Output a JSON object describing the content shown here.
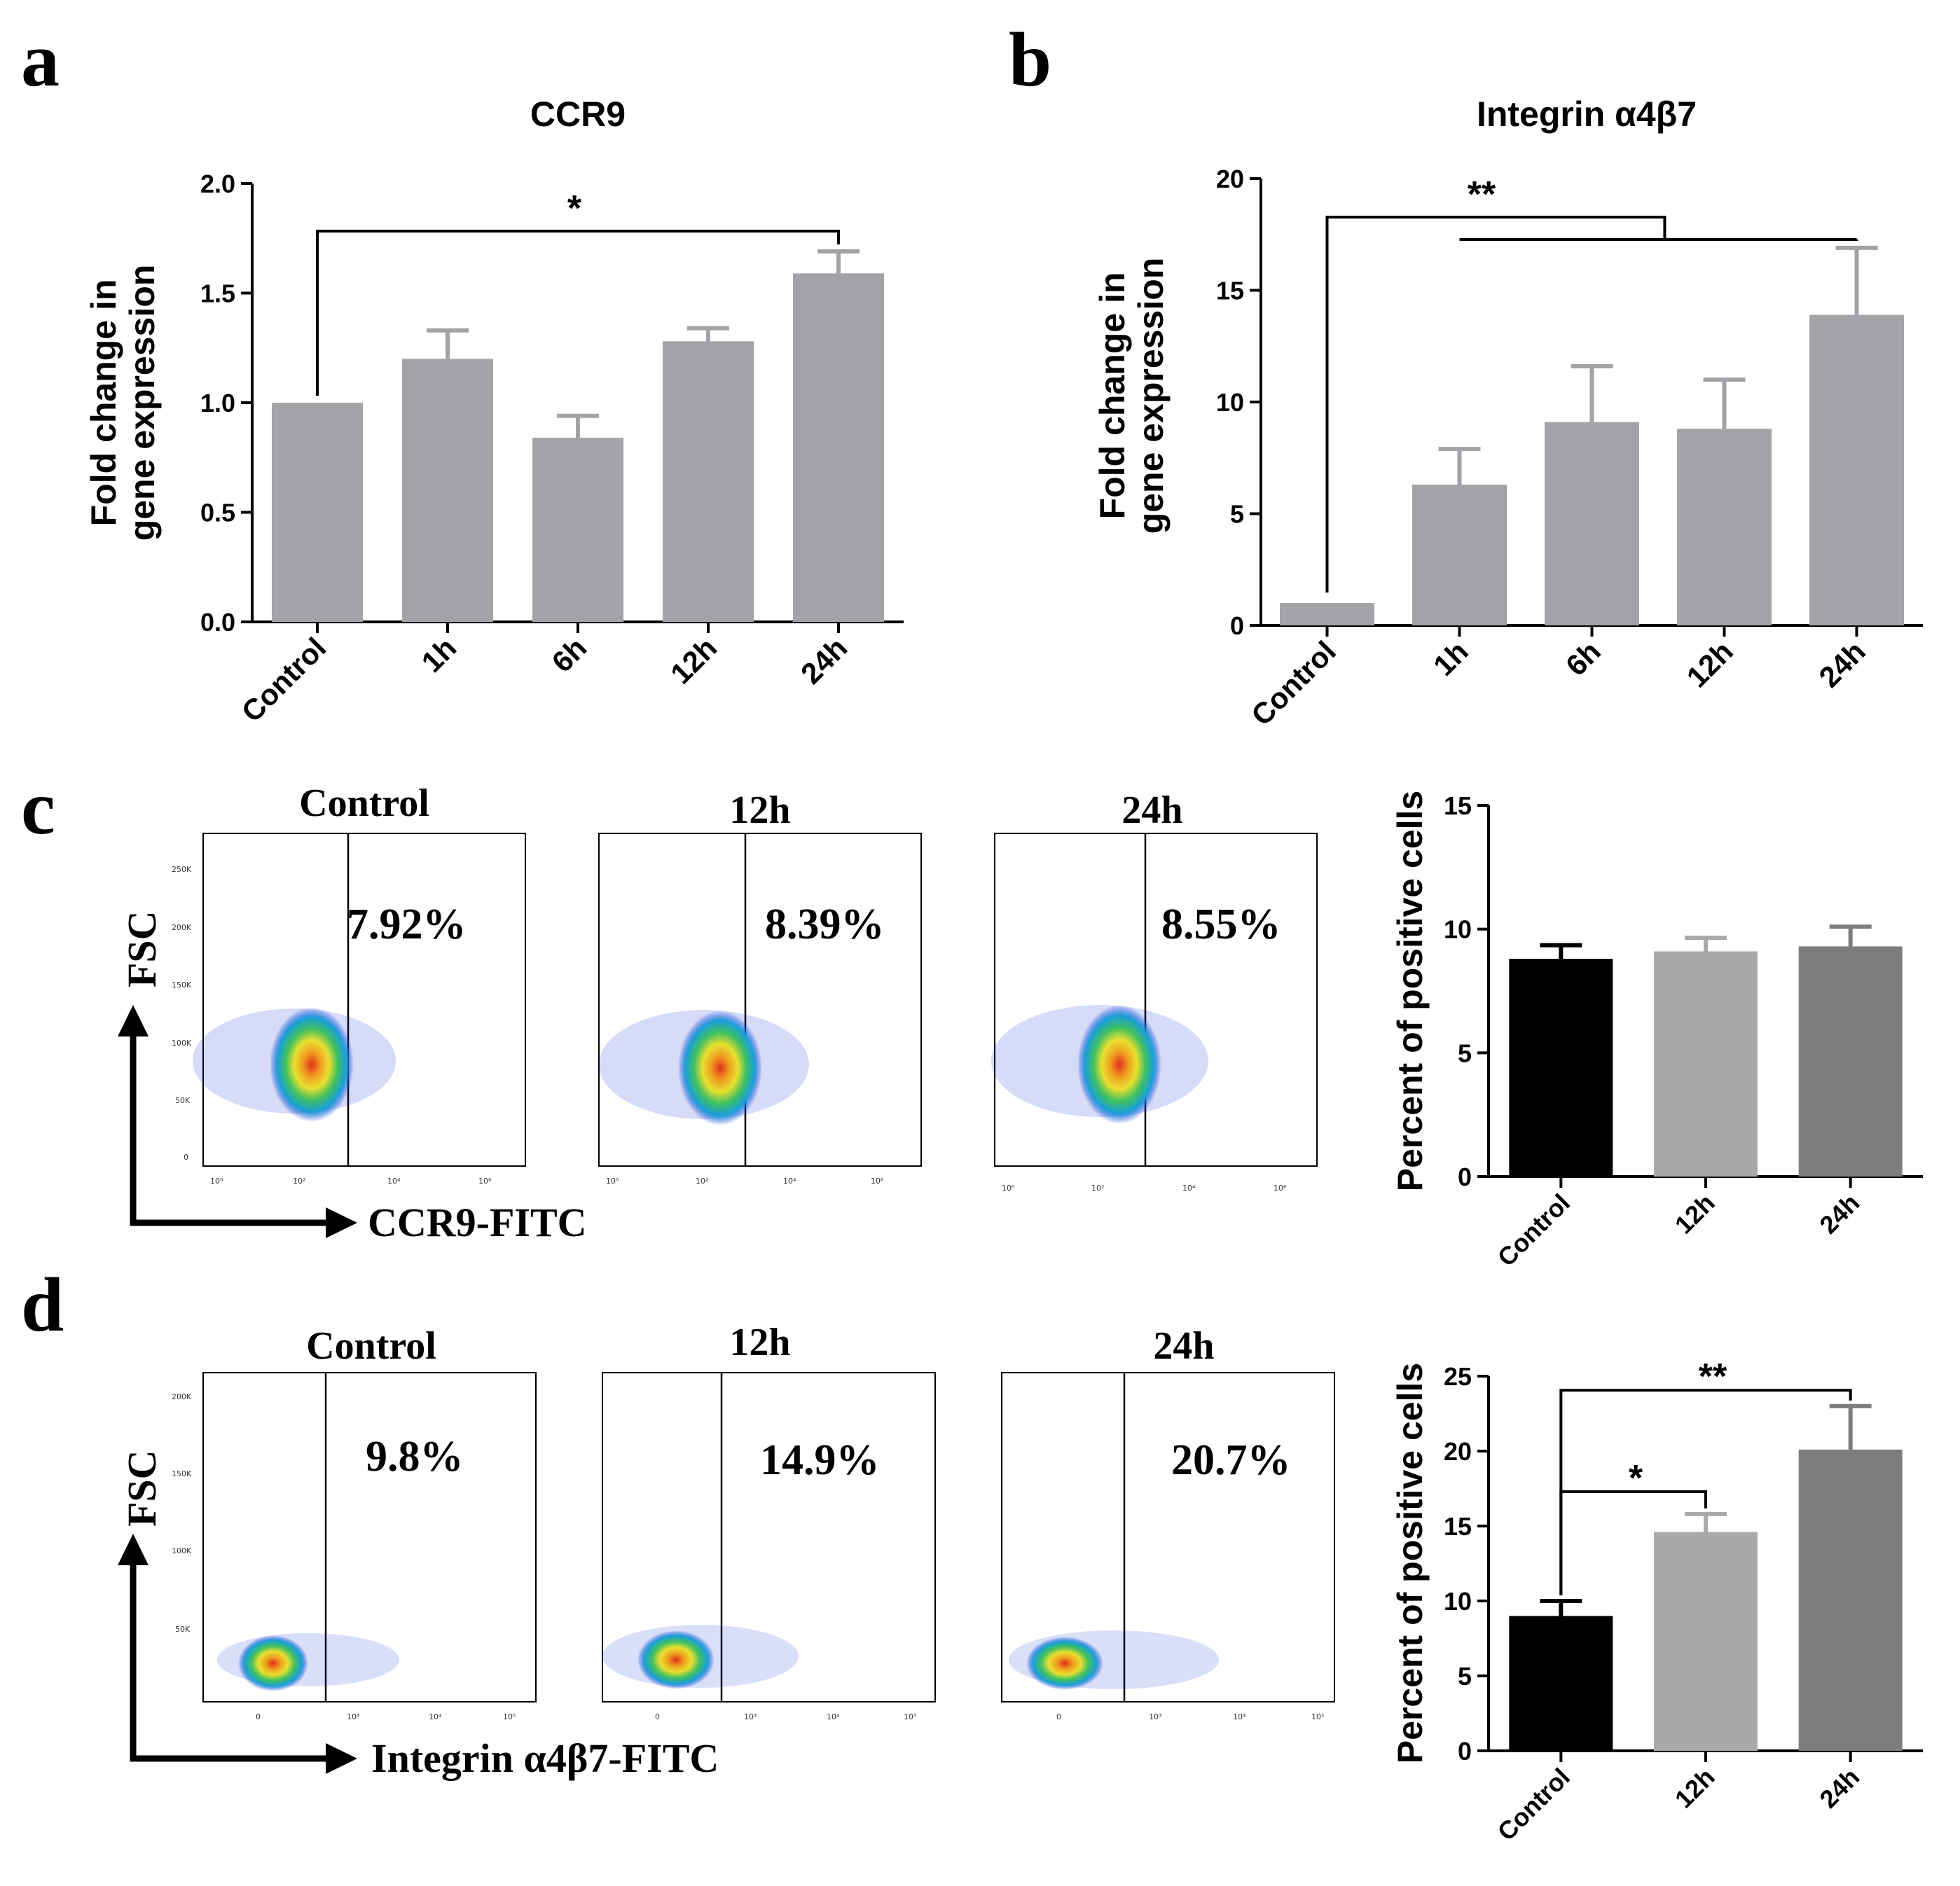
{
  "panel_labels": [
    "a",
    "b",
    "c",
    "d"
  ],
  "colors": {
    "bar_gray": "#a3a3a7",
    "bar_black": "#000000",
    "bar_light": "#a9a9ac",
    "bar_dark": "#7d7d80",
    "axis": "#000000"
  },
  "chart_data": [
    {
      "id": "a",
      "type": "bar",
      "title": "CCR9",
      "ylabel": [
        "Fold change in",
        "gene expression"
      ],
      "categories": [
        "Control",
        "1h",
        "6h",
        "12h",
        "24h"
      ],
      "values": [
        1.0,
        1.2,
        0.84,
        1.28,
        1.59
      ],
      "errors": [
        0.0,
        0.13,
        0.1,
        0.06,
        0.1
      ],
      "ylim": [
        0,
        2.0
      ],
      "yticks": [
        "0.0",
        "0.5",
        "1.0",
        "1.5",
        "2.0"
      ],
      "significance": [
        {
          "from": "Control",
          "to": "24h",
          "label": "*"
        }
      ]
    },
    {
      "id": "b",
      "type": "bar",
      "title": "Integrin α4β7",
      "ylabel": [
        "Fold change in",
        "gene expression"
      ],
      "categories": [
        "Control",
        "1h",
        "6h",
        "12h",
        "24h"
      ],
      "values": [
        1.0,
        6.3,
        9.1,
        8.8,
        13.9
      ],
      "errors": [
        0.0,
        1.6,
        2.5,
        2.2,
        3.0
      ],
      "ylim": [
        0,
        20
      ],
      "yticks": [
        "0",
        "5",
        "10",
        "15",
        "20"
      ],
      "significance": [
        {
          "from": "Control",
          "to": "1h–24h",
          "label": "**"
        }
      ]
    },
    {
      "id": "c",
      "type": "bar",
      "title": "",
      "ylabel": [
        "Percent of positive cells"
      ],
      "categories": [
        "Control",
        "12h",
        "24h"
      ],
      "values": [
        8.8,
        9.1,
        9.3
      ],
      "errors": [
        0.55,
        0.55,
        0.8
      ],
      "ylim": [
        0,
        15
      ],
      "yticks": [
        "0",
        "5",
        "10",
        "15"
      ],
      "significance": []
    },
    {
      "id": "d",
      "type": "bar",
      "title": "",
      "ylabel": [
        "Percent of positive cells"
      ],
      "categories": [
        "Control",
        "12h",
        "24h"
      ],
      "values": [
        9.0,
        14.6,
        20.1
      ],
      "errors": [
        1.0,
        1.2,
        2.9
      ],
      "ylim": [
        0,
        25
      ],
      "yticks": [
        "0",
        "5",
        "10",
        "15",
        "20",
        "25"
      ],
      "significance": [
        {
          "from": "Control",
          "to": "12h",
          "label": "*"
        },
        {
          "from": "Control",
          "to": "24h",
          "label": "**"
        }
      ]
    }
  ],
  "flow": {
    "c": {
      "y_axis": "FSC",
      "x_axis": "CCR9-FITC",
      "yticks": [
        "0",
        "50K",
        "100K",
        "150K",
        "200K",
        "250K"
      ],
      "xticks_1": [
        "10⁰",
        "10²",
        "10⁴",
        "10⁶"
      ],
      "xticks_2": [
        "10⁰",
        "10²",
        "10⁴",
        "10⁶"
      ],
      "xticks_3": [
        "10⁰",
        "10²",
        "10⁴",
        "10⁶"
      ],
      "plots": [
        {
          "title": "Control",
          "percent": "7.92%"
        },
        {
          "title": "12h",
          "percent": "8.39%"
        },
        {
          "title": "24h",
          "percent": "8.55%"
        }
      ]
    },
    "d": {
      "y_axis": "FSC",
      "x_axis": "Integrin α4β7-FITC",
      "yticks": [
        "50K",
        "100K",
        "150K",
        "200K"
      ],
      "xticks": [
        "0",
        "10³",
        "10⁴",
        "10⁵"
      ],
      "plots": [
        {
          "title": "Control",
          "percent": "9.8%"
        },
        {
          "title": "12h",
          "percent": "14.9%"
        },
        {
          "title": "24h",
          "percent": "20.7%"
        }
      ]
    }
  }
}
